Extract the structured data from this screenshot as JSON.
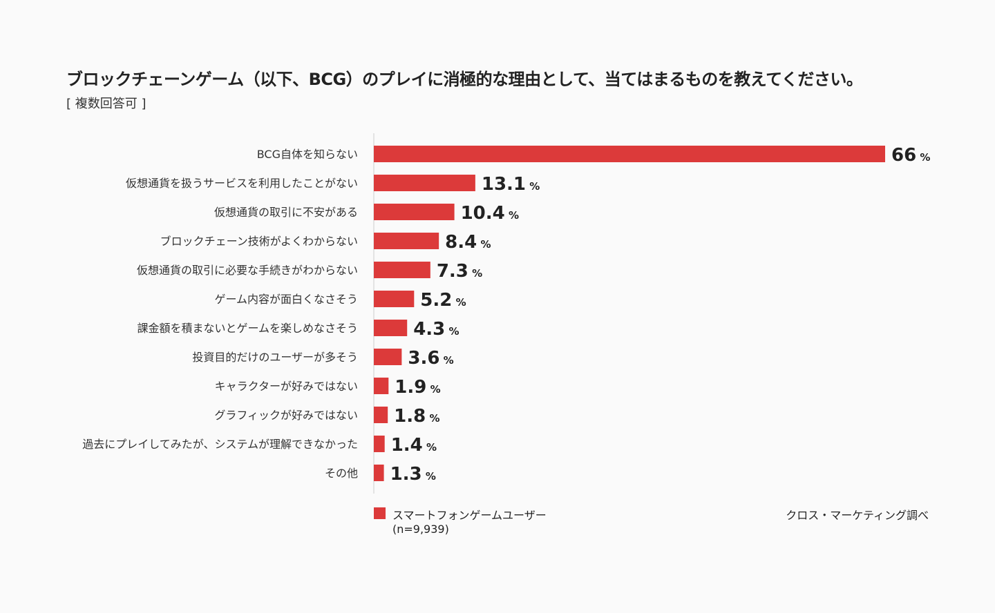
{
  "chart_data": {
    "type": "bar",
    "orientation": "horizontal",
    "title": "ブロックチェーンゲーム（以下、BCG）のプレイに消極的な理由として、当てはまるものを教えてください。",
    "subtitle": "[ 複数回答可 ]",
    "categories": [
      "BCG自体を知らない",
      "仮想通貨を扱うサービスを利用したことがない",
      "仮想通貨の取引に不安がある",
      "ブロックチェーン技術がよくわからない",
      "仮想通貨の取引に必要な手続きがわからない",
      "ゲーム内容が面白くなさそう",
      "課金額を積まないとゲームを楽しめなさそう",
      "投資目的だけのユーザーが多そう",
      "キャラクターが好みではない",
      "グラフィックが好みではない",
      "過去にプレイしてみたが、システムが理解できなかった",
      "その他"
    ],
    "series": [
      {
        "name": "スマートフォンゲームユーザー",
        "values": [
          66,
          13.1,
          10.4,
          8.4,
          7.3,
          5.2,
          4.3,
          3.6,
          1.9,
          1.8,
          1.4,
          1.3
        ]
      }
    ],
    "value_labels": [
      "66",
      "13.1",
      "10.4",
      "8.4",
      "7.3",
      "5.2",
      "4.3",
      "3.6",
      "1.9",
      "1.8",
      "1.4",
      "1.3"
    ],
    "unit": "%",
    "xlim": [
      0,
      66
    ],
    "grid": false,
    "legend_position": "bottom-left",
    "colors": {
      "bar": "#dc3a3a"
    }
  },
  "legend": {
    "label": "スマートフォンゲームユーザー",
    "sample": "(n=9,939)"
  },
  "source": "クロス・マーケティング調べ"
}
